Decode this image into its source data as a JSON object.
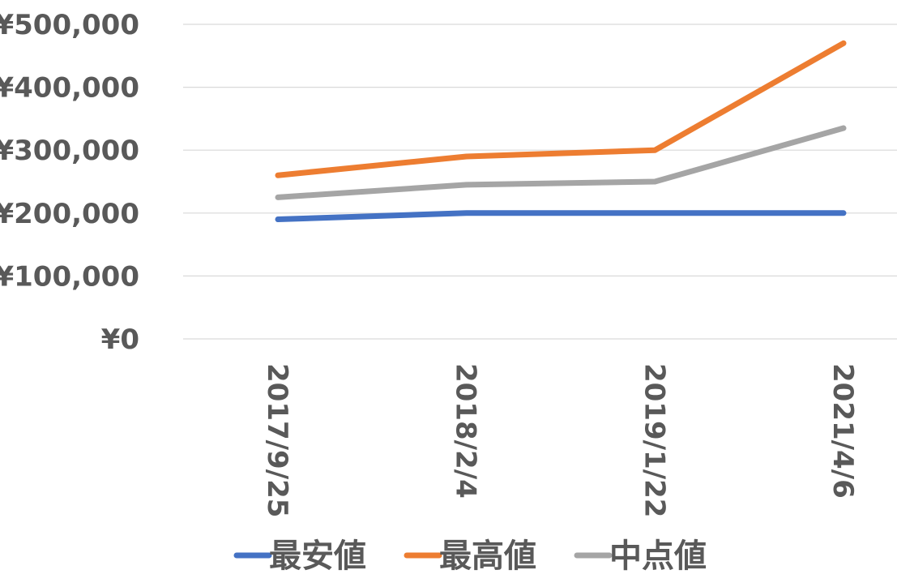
{
  "chart_data": {
    "type": "line",
    "title": "",
    "xlabel": "",
    "ylabel": "",
    "categories": [
      "2017/9/25",
      "2018/2/4",
      "2019/1/22",
      "2021/4/6"
    ],
    "ylim": [
      0,
      500000
    ],
    "y_ticks": [
      0,
      100000,
      200000,
      300000,
      400000,
      500000
    ],
    "y_tick_labels": [
      "¥0",
      "¥100,000",
      "¥200,000",
      "¥300,000",
      "¥400,000",
      "¥500,000"
    ],
    "grid": true,
    "legend_position": "bottom",
    "series": [
      {
        "name": "最安値",
        "color": "#4472C4",
        "values": [
          190000,
          200000,
          200000,
          200000
        ]
      },
      {
        "name": "最高値",
        "color": "#ED7D31",
        "values": [
          260000,
          290000,
          300000,
          470000
        ]
      },
      {
        "name": "中点値",
        "color": "#A5A5A5",
        "values": [
          225000,
          245000,
          250000,
          335000
        ]
      }
    ]
  }
}
